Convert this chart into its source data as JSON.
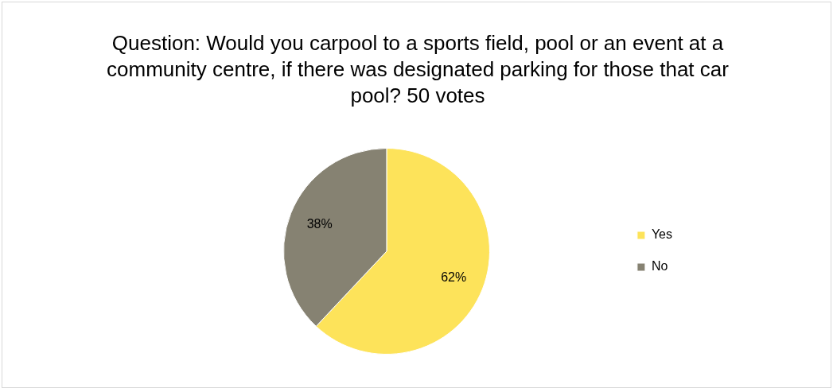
{
  "chart_data": {
    "type": "pie",
    "title": "Question: Would you carpool to a sports field, pool or an event at a community centre, if there was designated parking for those that car pool? 50 votes",
    "categories": [
      "Yes",
      "No"
    ],
    "values": [
      62,
      38
    ],
    "colors": [
      "#fde35a",
      "#868272"
    ],
    "value_labels": [
      "62%",
      "38%"
    ],
    "legend": "right"
  }
}
